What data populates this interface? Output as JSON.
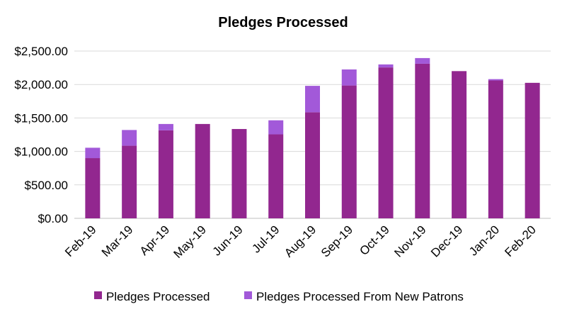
{
  "chart_data": {
    "type": "bar",
    "stacked": true,
    "title": "Pledges Processed",
    "categories": [
      "Feb-19",
      "Mar-19",
      "Apr-19",
      "May-19",
      "Jun-19",
      "Jul-19",
      "Aug-19",
      "Sep-19",
      "Oct-19",
      "Nov-19",
      "Dec-19",
      "Jan-20",
      "Feb-20"
    ],
    "series": [
      {
        "name": "Pledges Processed",
        "color": "#92278f",
        "values": [
          900,
          1085,
          1315,
          1410,
          1335,
          1255,
          1585,
          1985,
          2255,
          2310,
          2200,
          2060,
          2025
        ]
      },
      {
        "name": "Pledges Processed From New Patrons",
        "color": "#a259d9",
        "values": [
          155,
          235,
          95,
          0,
          0,
          210,
          395,
          240,
          45,
          85,
          0,
          20,
          0
        ]
      }
    ],
    "y_ticks": [
      "$0.00",
      "$500.00",
      "$1,000.00",
      "$1,500.00",
      "$2,000.00",
      "$2,500.00"
    ],
    "ylim": [
      0,
      2500
    ],
    "grid": true,
    "legend_position": "bottom"
  }
}
